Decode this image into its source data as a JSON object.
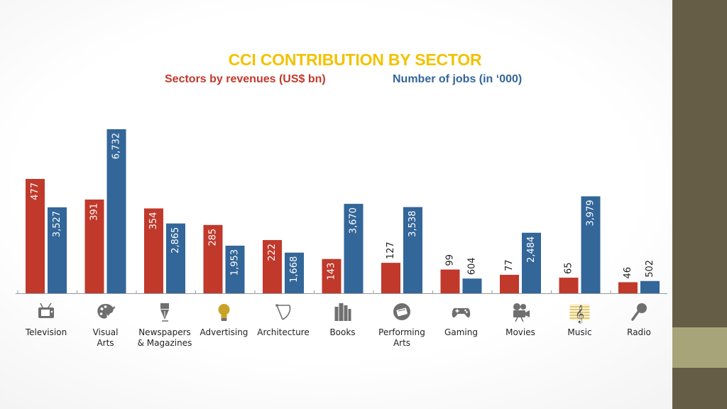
{
  "title": "CCI CONTRIBUTION BY SECTOR",
  "colors": {
    "revenue": "#c0392b",
    "jobs": "#336699",
    "title": "#f2c200",
    "sidebar": "#655d45",
    "sidebar_accent": "#a8a479"
  },
  "chart_data": {
    "type": "bar",
    "title": "CCI CONTRIBUTION BY SECTOR",
    "categories": [
      "Television",
      "Visual Arts",
      "Newspapers & Magazines",
      "Advertising",
      "Architecture",
      "Books",
      "Performing Arts",
      "Gaming",
      "Movies",
      "Music",
      "Radio"
    ],
    "category_lines": [
      [
        "Television"
      ],
      [
        "Visual",
        "Arts"
      ],
      [
        "Newspapers",
        "& Magazines"
      ],
      [
        "Advertising"
      ],
      [
        "Architecture"
      ],
      [
        "Books"
      ],
      [
        "Performing",
        "Arts"
      ],
      [
        "Gaming"
      ],
      [
        "Movies"
      ],
      [
        "Music"
      ],
      [
        "Radio"
      ]
    ],
    "icons": [
      "tv-icon",
      "palette-icon",
      "fountain-pen-icon",
      "lightbulb-icon",
      "compass-icon",
      "books-icon",
      "theater-icon",
      "gamepad-icon",
      "film-camera-icon",
      "music-note-icon",
      "microphone-icon"
    ],
    "series": [
      {
        "name": "Sectors by revenues (US$ bn)",
        "color": "#c0392b",
        "values": [
          477,
          391,
          354,
          285,
          222,
          143,
          127,
          99,
          77,
          65,
          46
        ],
        "labels": [
          "477",
          "391",
          "354",
          "285",
          "222",
          "143",
          "127",
          "99",
          "77",
          "65",
          "46"
        ]
      },
      {
        "name": "Number of jobs (in ‘000)",
        "color": "#336699",
        "values": [
          3527,
          6732,
          2865,
          1953,
          1668,
          3670,
          3538,
          604,
          2484,
          3979,
          502
        ],
        "labels": [
          "3,527",
          "6,732",
          "2,865",
          "1,953",
          "1,668",
          "3,670",
          "3,538",
          "604",
          "2,484",
          "3,979",
          "502"
        ]
      }
    ],
    "legend": "top",
    "grid": false
  }
}
